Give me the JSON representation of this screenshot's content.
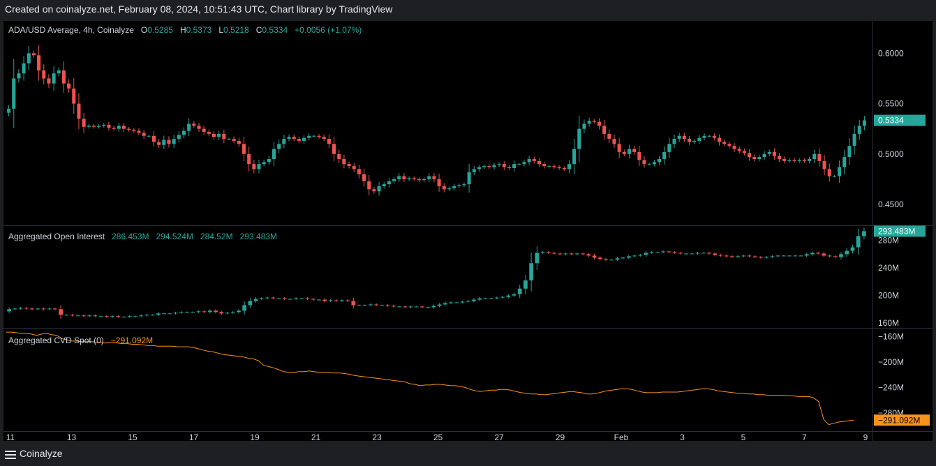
{
  "header": {
    "credit": "Created on coinalyze.net, February 08, 2024, 10:51:43 UTC, Chart library by TradingView"
  },
  "footer": {
    "brand": "Coinalyze"
  },
  "colors": {
    "up": "#26a69a",
    "down": "#ef5350",
    "cvd": "#f7931a",
    "background": "#000000",
    "grid": "#2a2e39",
    "text": "#d1d4dc"
  },
  "icons": {
    "menu": "hamburger-menu-icon"
  },
  "chart_data": [
    {
      "type": "candlestick",
      "symbol": "ADA/USD Average, 4h, Coinalyze",
      "ohlc_labels": {
        "o": "O",
        "h": "H",
        "l": "L",
        "c": "C"
      },
      "legend_values": {
        "o": "0.5285",
        "h": "0.5373",
        "l": "0.5218",
        "c": "0.5334",
        "change": "+0.0056 (+1.07%)"
      },
      "last_price_label": "0.5334",
      "y_ticks": [
        "0.6000",
        "0.5500",
        "0.5000",
        "0.4500"
      ],
      "y_tick_values": [
        0.6,
        0.55,
        0.5,
        0.45
      ],
      "ylim": [
        0.4292,
        0.6321
      ],
      "close": [
        0.545,
        0.575,
        0.58,
        0.59,
        0.6,
        0.598,
        0.583,
        0.575,
        0.57,
        0.58,
        0.583,
        0.57,
        0.565,
        0.55,
        0.535,
        0.527,
        0.528,
        0.527,
        0.528,
        0.529,
        0.526,
        0.525,
        0.528,
        0.525,
        0.524,
        0.523,
        0.521,
        0.518,
        0.518,
        0.512,
        0.509,
        0.514,
        0.51,
        0.515,
        0.519,
        0.523,
        0.53,
        0.528,
        0.525,
        0.522,
        0.52,
        0.517,
        0.52,
        0.515,
        0.515,
        0.513,
        0.51,
        0.5,
        0.49,
        0.485,
        0.49,
        0.492,
        0.495,
        0.505,
        0.51,
        0.515,
        0.517,
        0.515,
        0.513,
        0.516,
        0.518,
        0.518,
        0.517,
        0.515,
        0.51,
        0.5,
        0.495,
        0.49,
        0.488,
        0.485,
        0.48,
        0.473,
        0.465,
        0.463,
        0.468,
        0.47,
        0.473,
        0.475,
        0.478,
        0.475,
        0.476,
        0.475,
        0.474,
        0.475,
        0.478,
        0.475,
        0.468,
        0.465,
        0.466,
        0.468,
        0.469,
        0.47,
        0.482,
        0.485,
        0.487,
        0.488,
        0.487,
        0.489,
        0.49,
        0.487,
        0.486,
        0.49,
        0.49,
        0.492,
        0.495,
        0.493,
        0.49,
        0.488,
        0.488,
        0.487,
        0.486,
        0.485,
        0.49,
        0.505,
        0.525,
        0.53,
        0.533,
        0.532,
        0.528,
        0.52,
        0.515,
        0.51,
        0.502,
        0.5,
        0.505,
        0.502,
        0.494,
        0.49,
        0.49,
        0.492,
        0.495,
        0.502,
        0.51,
        0.515,
        0.518,
        0.515,
        0.512,
        0.513,
        0.516,
        0.518,
        0.518,
        0.516,
        0.512,
        0.51,
        0.508,
        0.505,
        0.503,
        0.501,
        0.497,
        0.495,
        0.497,
        0.5,
        0.502,
        0.498,
        0.495,
        0.493,
        0.494,
        0.493,
        0.494,
        0.493,
        0.495,
        0.5,
        0.493,
        0.485,
        0.478,
        0.478,
        0.487,
        0.497,
        0.508,
        0.52,
        0.528,
        0.5334
      ],
      "x_ticks": [
        "11",
        "13",
        "15",
        "17",
        "19",
        "21",
        "23",
        "25",
        "27",
        "29",
        "Feb",
        "3",
        "5",
        "7",
        "9"
      ]
    },
    {
      "type": "candlestick",
      "title": "Aggregated Open Interest",
      "legend_values": {
        "o": "286.453M",
        "h": "294.524M",
        "l": "284.52M",
        "c": "293.483M"
      },
      "last_value_label": "293.483M",
      "y_ticks": [
        "280M",
        "240M",
        "200M",
        "160M"
      ],
      "y_tick_values": [
        280,
        240,
        200,
        160
      ],
      "ylim": [
        153,
        301
      ],
      "close": [
        180,
        181,
        182,
        181,
        180,
        181,
        180,
        181,
        180,
        172,
        172,
        171,
        171,
        170,
        171,
        170,
        170,
        169,
        170,
        169,
        169,
        170,
        170,
        171,
        172,
        172,
        174,
        174,
        174,
        175,
        176,
        176,
        176,
        177,
        176,
        178,
        176,
        174,
        175,
        176,
        178,
        186,
        192,
        195,
        196,
        197,
        196,
        196,
        195,
        195,
        196,
        196,
        195,
        194,
        194,
        192,
        193,
        192,
        193,
        192,
        186,
        186,
        186,
        187,
        186,
        186,
        185,
        184,
        184,
        183,
        184,
        184,
        183,
        183,
        185,
        187,
        189,
        190,
        190,
        191,
        192,
        194,
        196,
        196,
        196,
        197,
        198,
        200,
        202,
        210,
        222,
        247,
        262,
        263,
        262,
        261,
        260,
        261,
        260,
        261,
        260,
        258,
        255,
        253,
        252,
        252,
        254,
        255,
        257,
        258,
        259,
        262,
        263,
        263,
        264,
        263,
        262,
        261,
        261,
        261,
        262,
        262,
        261,
        259,
        258,
        257,
        256,
        257,
        258,
        257,
        256,
        255,
        256,
        257,
        258,
        258,
        258,
        258,
        258,
        260,
        262,
        261,
        258,
        257,
        256,
        260,
        265,
        270,
        286.453,
        293.483
      ]
    },
    {
      "type": "line",
      "title": "Aggregated CVD Spot (0)",
      "legend_value": "−291.092M",
      "last_value_label": "−291.092M",
      "y_ticks": [
        "−160M",
        "−200M",
        "−240M",
        "−280M"
      ],
      "y_tick_values": [
        -160,
        -200,
        -240,
        -280
      ],
      "ylim": [
        -308.3,
        -147.4
      ],
      "values": [
        -153,
        -153,
        -154,
        -155,
        -155,
        -156,
        -158,
        -156,
        -155,
        -157,
        -158,
        -163,
        -165,
        -167,
        -167,
        -168,
        -168,
        -168,
        -169,
        -170,
        -170,
        -169,
        -170,
        -171,
        -171,
        -172,
        -172,
        -173,
        -174,
        -174,
        -175,
        -175,
        -175,
        -175,
        -176,
        -176,
        -176,
        -177,
        -179,
        -181,
        -183,
        -184,
        -186,
        -188,
        -189,
        -190,
        -191,
        -192,
        -194,
        -195,
        -198,
        -205,
        -207,
        -209,
        -212,
        -215,
        -216,
        -216,
        -215,
        -215,
        -214,
        -215,
        -216,
        -216,
        -216,
        -217,
        -217,
        -218,
        -219,
        -221,
        -222,
        -223,
        -224,
        -225,
        -226,
        -227,
        -228,
        -229,
        -230,
        -231,
        -234,
        -235,
        -237,
        -236,
        -236,
        -235,
        -235,
        -236,
        -237,
        -237,
        -238,
        -240,
        -243,
        -245,
        -246,
        -245,
        -244,
        -244,
        -243,
        -243,
        -244,
        -246,
        -248,
        -249,
        -250,
        -250,
        -251,
        -251,
        -250,
        -249,
        -248,
        -247,
        -246,
        -247,
        -248,
        -250,
        -250,
        -249,
        -247,
        -245,
        -244,
        -243,
        -242,
        -242,
        -243,
        -245,
        -247,
        -248,
        -248,
        -248,
        -247,
        -247,
        -247,
        -247,
        -246,
        -245,
        -244,
        -243,
        -242,
        -242,
        -243,
        -245,
        -246,
        -247,
        -248,
        -249,
        -249,
        -250,
        -250,
        -251,
        -251,
        -252,
        -252,
        -252,
        -252,
        -253,
        -253,
        -254,
        -254,
        -254,
        -256,
        -262,
        -290,
        -298,
        -296,
        -294,
        -293,
        -292,
        -291.092
      ]
    }
  ]
}
